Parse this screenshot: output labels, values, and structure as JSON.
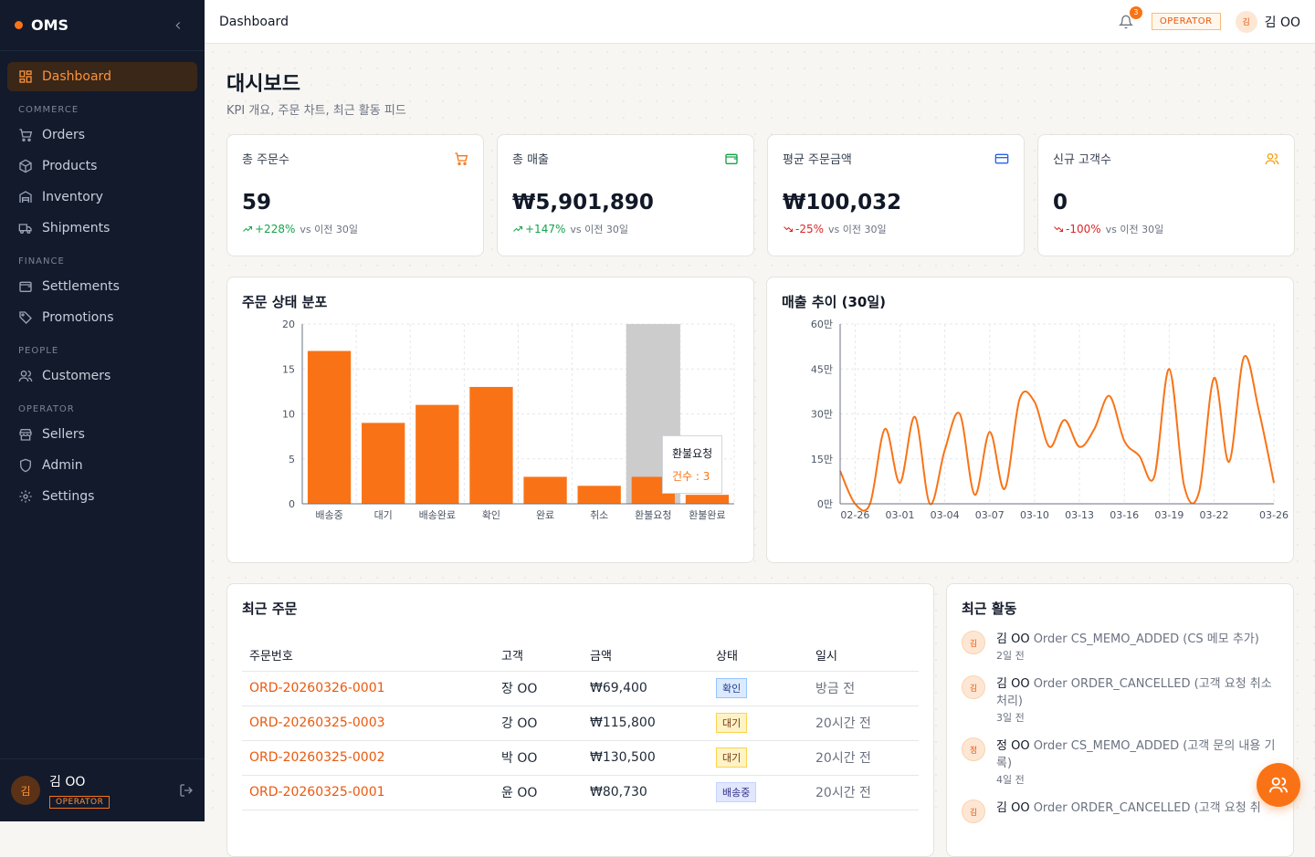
{
  "brand": {
    "name": "OMS",
    "collapse_icon": "chevron-left-icon"
  },
  "sidebar": {
    "dashboard": "Dashboard",
    "sections": {
      "commerce": "COMMERCE",
      "finance": "FINANCE",
      "people": "PEOPLE",
      "operator": "OPERATOR"
    },
    "items": {
      "orders": "Orders",
      "products": "Products",
      "inventory": "Inventory",
      "shipments": "Shipments",
      "settlements": "Settlements",
      "promotions": "Promotions",
      "customers": "Customers",
      "sellers": "Sellers",
      "admin": "Admin",
      "settings": "Settings"
    },
    "user": {
      "avatar": "김",
      "name": "김 OO",
      "role": "OPERATOR"
    }
  },
  "topbar": {
    "title": "Dashboard",
    "notification_count": "3",
    "role": "OPERATOR",
    "avatar": "김",
    "user_name": "김 OO"
  },
  "page": {
    "title": "대시보드",
    "subtitle": "KPI 개요, 주문 차트, 최근 활동 피드"
  },
  "kpis": [
    {
      "label": "총 주문수",
      "value": "59",
      "trend": "+228%",
      "direction": "up",
      "vs": "vs 이전 30일",
      "icon": "cart-icon",
      "color": "#f97316"
    },
    {
      "label": "총 매출",
      "value": "₩5,901,890",
      "trend": "+147%",
      "direction": "up",
      "vs": "vs 이전 30일",
      "icon": "wallet-icon",
      "color": "#16a34a"
    },
    {
      "label": "평균 주문금액",
      "value": "₩100,032",
      "trend": "-25%",
      "direction": "down",
      "vs": "vs 이전 30일",
      "icon": "credit-card-icon",
      "color": "#2563eb"
    },
    {
      "label": "신규 고객수",
      "value": "0",
      "trend": "-100%",
      "direction": "down",
      "vs": "vs 이전 30일",
      "icon": "users-icon",
      "color": "#f59e0b"
    }
  ],
  "chart_data": [
    {
      "type": "bar",
      "title": "주문 상태 분포",
      "categories": [
        "배송중",
        "대기",
        "배송완료",
        "확인",
        "완료",
        "취소",
        "환불요청",
        "환불완료"
      ],
      "values": [
        17,
        9,
        11,
        13,
        3,
        2,
        3,
        1
      ],
      "ylim": [
        0,
        20
      ],
      "yticks": [
        "0",
        "5",
        "10",
        "15",
        "20"
      ],
      "color": "#f97316",
      "highlighted": "환불요청",
      "tooltip": {
        "label": "환불요청",
        "value_text": "건수 : 3"
      },
      "grid": true
    },
    {
      "type": "line",
      "title": "매출 추이 (30일)",
      "x": [
        "02-25",
        "02-26",
        "02-27",
        "02-28",
        "03-01",
        "03-02",
        "03-03",
        "03-04",
        "03-05",
        "03-06",
        "03-07",
        "03-08",
        "03-09",
        "03-10",
        "03-11",
        "03-12",
        "03-13",
        "03-14",
        "03-15",
        "03-16",
        "03-17",
        "03-18",
        "03-19",
        "03-20",
        "03-21",
        "03-22",
        "03-23",
        "03-24",
        "03-25",
        "03-26"
      ],
      "xticks": [
        "02-26",
        "03-01",
        "03-04",
        "03-07",
        "03-10",
        "03-13",
        "03-16",
        "03-19",
        "03-22",
        "03-26"
      ],
      "y": [
        110000,
        0,
        0,
        250000,
        70000,
        290000,
        0,
        180000,
        300000,
        30000,
        240000,
        50000,
        350000,
        340000,
        190000,
        280000,
        190000,
        250000,
        360000,
        210000,
        160000,
        90000,
        450000,
        60000,
        40000,
        420000,
        140000,
        490000,
        310000,
        70000
      ],
      "ylim": [
        0,
        600000
      ],
      "yticks": [
        "0만",
        "15만",
        "30만",
        "45만",
        "60만"
      ],
      "color": "#f97316",
      "grid": true
    }
  ],
  "recent_orders": {
    "title": "최근 주문",
    "columns": [
      "주문번호",
      "고객",
      "금액",
      "상태",
      "일시"
    ],
    "rows": [
      {
        "id": "ORD-20260326-0001",
        "customer": "장 OO",
        "amount": "₩69,400",
        "status": "확인",
        "status_kind": "confirm",
        "time": "방금 전"
      },
      {
        "id": "ORD-20260325-0003",
        "customer": "강 OO",
        "amount": "₩115,800",
        "status": "대기",
        "status_kind": "wait",
        "time": "20시간 전"
      },
      {
        "id": "ORD-20260325-0002",
        "customer": "박 OO",
        "amount": "₩130,500",
        "status": "대기",
        "status_kind": "wait",
        "time": "20시간 전"
      },
      {
        "id": "ORD-20260325-0001",
        "customer": "윤 OO",
        "amount": "₩80,730",
        "status": "배송중",
        "status_kind": "ship",
        "time": "20시간 전"
      }
    ]
  },
  "activity": {
    "title": "최근 활동",
    "items": [
      {
        "avatar": "김",
        "who": "김 OO",
        "text": "Order CS_MEMO_ADDED (CS 메모 추가)",
        "time": "2일 전"
      },
      {
        "avatar": "김",
        "who": "김 OO",
        "text": "Order ORDER_CANCELLED (고객 요청 취소 처리)",
        "time": "3일 전"
      },
      {
        "avatar": "정",
        "who": "정 OO",
        "text": "Order CS_MEMO_ADDED (고객 문의 내용 기록)",
        "time": "4일 전"
      },
      {
        "avatar": "김",
        "who": "김 OO",
        "text": "Order ORDER_CANCELLED (고객 요청 취",
        "time": ""
      }
    ]
  },
  "fab": {
    "icon": "users-icon"
  }
}
